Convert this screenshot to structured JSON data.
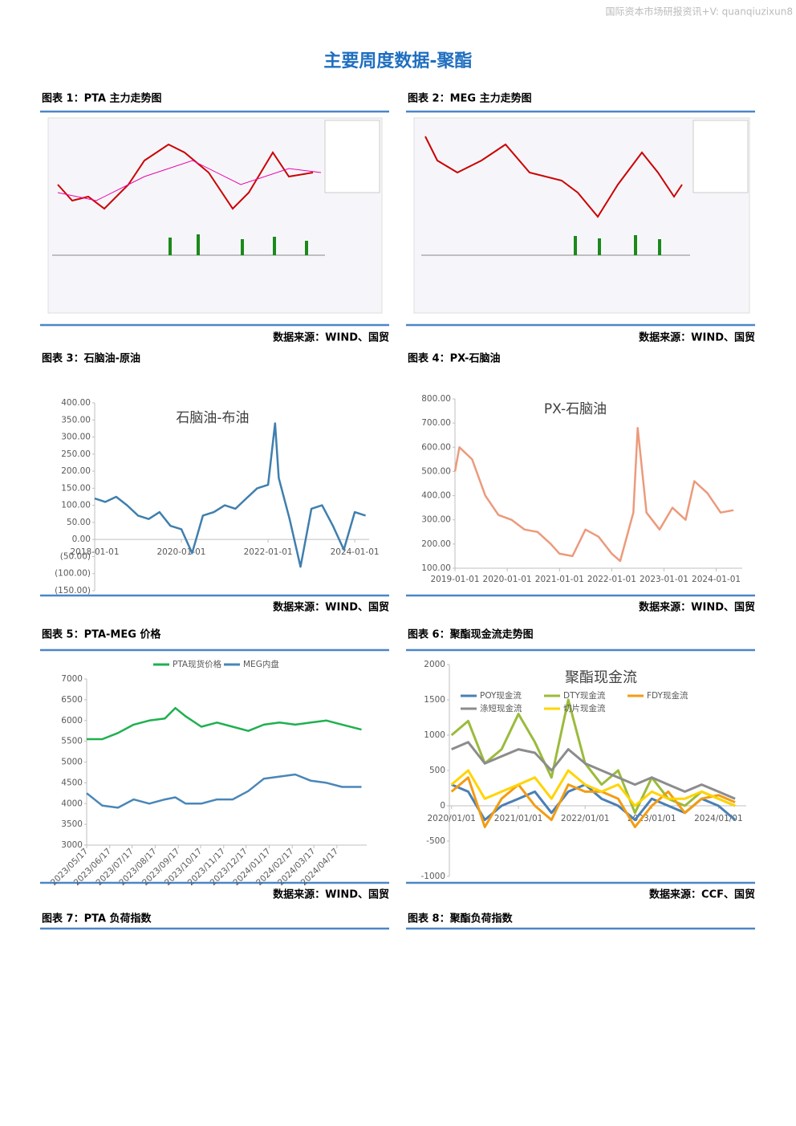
{
  "header": "国际资本市场研报资讯+V: quanqiuzixun8",
  "title": "主要周度数据-聚酯",
  "figures": [
    {
      "caption": "图表 1：PTA 主力走势图",
      "source": "数据来源：WIND、国贸"
    },
    {
      "caption": "图表 2：MEG 主力走势图",
      "source": "数据来源：WIND、国贸"
    },
    {
      "caption": "图表 3：石脑油-原油",
      "source": "数据来源：WIND、国贸",
      "chart": {
        "type": "line",
        "title": "石脑油-布油",
        "negative_label_color": "#ff0000",
        "x": [
          "2018-01-01",
          "2018-04-01",
          "2018-07-01",
          "2018-10-01",
          "2019-01-01",
          "2019-04-01",
          "2019-07-01",
          "2019-10-01",
          "2020-01-01",
          "2020-04-01",
          "2020-07-01",
          "2020-10-01",
          "2021-01-01",
          "2021-04-01",
          "2021-07-01",
          "2021-10-01",
          "2022-01-01",
          "2022-03-01",
          "2022-04-01",
          "2022-07-01",
          "2022-10-01",
          "2023-01-01",
          "2023-04-01",
          "2023-07-01",
          "2023-10-01",
          "2024-01-01",
          "2024-04-01"
        ],
        "series": [
          {
            "name": "石脑油-布油",
            "color": "#3f7fae",
            "values": [
              120,
              110,
              125,
              100,
              70,
              60,
              80,
              40,
              30,
              -40,
              70,
              80,
              100,
              90,
              120,
              150,
              160,
              340,
              180,
              60,
              -80,
              90,
              100,
              40,
              -30,
              80,
              70
            ]
          }
        ],
        "xlim": [
          "2018-01-01",
          "2024-05-01"
        ],
        "xticks": [
          "2018-01-01",
          "2020-01-01",
          "2022-01-01",
          "2024-01-01"
        ],
        "ylim": [
          -150,
          400
        ],
        "yticks": [
          {
            "value": -150,
            "label": "(150.00)"
          },
          {
            "value": -100,
            "label": "(100.00)"
          },
          {
            "value": -50,
            "label": "(50.00)"
          },
          {
            "value": 0,
            "label": "0.00"
          },
          {
            "value": 50,
            "label": "50.00"
          },
          {
            "value": 100,
            "label": "100.00"
          },
          {
            "value": 150,
            "label": "150.00"
          },
          {
            "value": 200,
            "label": "200.00"
          },
          {
            "value": 250,
            "label": "250.00"
          },
          {
            "value": 300,
            "label": "300.00"
          },
          {
            "value": 350,
            "label": "350.00"
          },
          {
            "value": 400,
            "label": "400.00"
          }
        ]
      }
    },
    {
      "caption": "图表 4：PX-石脑油",
      "source": "数据来源：WIND、国贸",
      "chart": {
        "type": "line",
        "title": "PX-石脑油",
        "x": [
          "2019-01-01",
          "2019-02-01",
          "2019-05-01",
          "2019-08-01",
          "2019-11-01",
          "2020-02-01",
          "2020-05-01",
          "2020-08-01",
          "2020-11-01",
          "2021-01-01",
          "2021-04-01",
          "2021-07-01",
          "2021-10-01",
          "2022-01-01",
          "2022-03-01",
          "2022-06-01",
          "2022-07-01",
          "2022-09-01",
          "2022-12-01",
          "2023-03-01",
          "2023-06-01",
          "2023-08-01",
          "2023-11-01",
          "2024-02-01",
          "2024-05-01"
        ],
        "series": [
          {
            "name": "PX-石脑油",
            "color": "#ec9a7c",
            "values": [
              500,
              600,
              550,
              400,
              320,
              300,
              260,
              250,
              200,
              160,
              150,
              260,
              230,
              160,
              130,
              330,
              680,
              330,
              260,
              350,
              300,
              460,
              410,
              330,
              340
            ]
          }
        ],
        "xlim": [
          "2019-01-01",
          "2024-07-01"
        ],
        "xticks": [
          "2019-01-01",
          "2020-01-01",
          "2021-01-01",
          "2022-01-01",
          "2023-01-01",
          "2024-01-01"
        ],
        "ylim": [
          100,
          800
        ],
        "yticks": [
          {
            "value": 100,
            "label": "100.00"
          },
          {
            "value": 200,
            "label": "200.00"
          },
          {
            "value": 300,
            "label": "300.00"
          },
          {
            "value": 400,
            "label": "400.00"
          },
          {
            "value": 500,
            "label": "500.00"
          },
          {
            "value": 600,
            "label": "600.00"
          },
          {
            "value": 700,
            "label": "700.00"
          },
          {
            "value": 800,
            "label": "800.00"
          }
        ]
      }
    },
    {
      "caption": "图表 5：PTA-MEG 价格",
      "source": "数据来源：WIND、国贸",
      "chart": {
        "type": "line",
        "legend": "top",
        "rotate_x_labels": true,
        "x": [
          "2023/05/17",
          "2023/06/07",
          "2023/06/28",
          "2023/07/19",
          "2023/08/09",
          "2023/08/30",
          "2023/09/13",
          "2023/09/27",
          "2023/10/18",
          "2023/11/08",
          "2023/11/29",
          "2023/12/20",
          "2024/01/10",
          "2024/01/31",
          "2024/02/21",
          "2024/03/13",
          "2024/04/03",
          "2024/04/24",
          "2024/05/20"
        ],
        "series": [
          {
            "name": "PTA现货价格",
            "color": "#1fb050",
            "values": [
              5550,
              5550,
              5700,
              5900,
              6000,
              6050,
              6300,
              6100,
              5850,
              5950,
              5850,
              5750,
              5900,
              5950,
              5900,
              5950,
              6000,
              5900,
              5780
            ]
          },
          {
            "name": "MEG内盘",
            "color": "#4a86b8",
            "values": [
              4250,
              3950,
              3900,
              4100,
              4000,
              4100,
              4150,
              4000,
              4000,
              4100,
              4100,
              4300,
              4600,
              4650,
              4700,
              4550,
              4500,
              4400,
              4400
            ]
          }
        ],
        "xlim": [
          "2023/05/17",
          "2024/05/27"
        ],
        "xticks": [
          "2023/05/17",
          "2023/06/17",
          "2023/07/17",
          "2023/08/17",
          "2023/09/17",
          "2023/10/17",
          "2023/11/17",
          "2023/12/17",
          "2024/01/17",
          "2024/02/17",
          "2024/03/17",
          "2024/04/17"
        ],
        "ylim": [
          3000,
          7000
        ],
        "yticks": [
          3000,
          3500,
          4000,
          4500,
          5000,
          5500,
          6000,
          6500,
          7000
        ]
      }
    },
    {
      "caption": "图表 6：聚酯现金流走势图",
      "source": "数据来源：CCF、国贸",
      "chart": {
        "type": "line",
        "title": "聚酯现金流",
        "legend": "top-left",
        "x": [
          "2020/01/01",
          "2020/04/01",
          "2020/07/01",
          "2020/10/01",
          "2021/01/01",
          "2021/04/01",
          "2021/07/01",
          "2021/10/01",
          "2022/01/01",
          "2022/04/01",
          "2022/07/01",
          "2022/10/01",
          "2023/01/01",
          "2023/04/01",
          "2023/07/01",
          "2023/10/01",
          "2024/01/01",
          "2024/04/01"
        ],
        "series": [
          {
            "name": "POY现金流",
            "color": "#4a7fb5",
            "values": [
              300,
              200,
              -200,
              0,
              100,
              200,
              -100,
              200,
              300,
              100,
              0,
              -200,
              100,
              0,
              -100,
              100,
              0,
              -200
            ]
          },
          {
            "name": "DTY现金流",
            "color": "#9bbb3b",
            "values": [
              1000,
              1200,
              600,
              800,
              1300,
              900,
              400,
              1500,
              600,
              300,
              500,
              -100,
              400,
              100,
              0,
              200,
              100,
              0
            ]
          },
          {
            "name": "FDY现金流",
            "color": "#f39c12",
            "values": [
              200,
              400,
              -300,
              100,
              300,
              0,
              -200,
              300,
              200,
              200,
              100,
              -300,
              0,
              200,
              -100,
              100,
              150,
              50
            ]
          },
          {
            "name": "涤短现金流",
            "color": "#8c8c8c",
            "values": [
              800,
              900,
              600,
              700,
              800,
              750,
              500,
              800,
              600,
              500,
              400,
              300,
              400,
              300,
              200,
              300,
              200,
              100
            ]
          },
          {
            "name": "切片现金流",
            "color": "#ffd400",
            "values": [
              300,
              500,
              100,
              200,
              300,
              400,
              100,
              500,
              300,
              200,
              300,
              0,
              200,
              100,
              100,
              200,
              100,
              0
            ]
          }
        ],
        "xlim": [
          "2019/12/20",
          "2024/06/01"
        ],
        "xticks": [
          "2020/01/01",
          "2021/01/01",
          "2022/01/01",
          "2023/01/01",
          "2024/01/01"
        ],
        "ylim": [
          -1000,
          2000
        ],
        "yticks": [
          -1000,
          -500,
          0,
          500,
          1000,
          1500,
          2000
        ]
      }
    },
    {
      "caption": "图表 7：PTA 负荷指数"
    },
    {
      "caption": "图表 8：聚酯负荷指数"
    }
  ]
}
